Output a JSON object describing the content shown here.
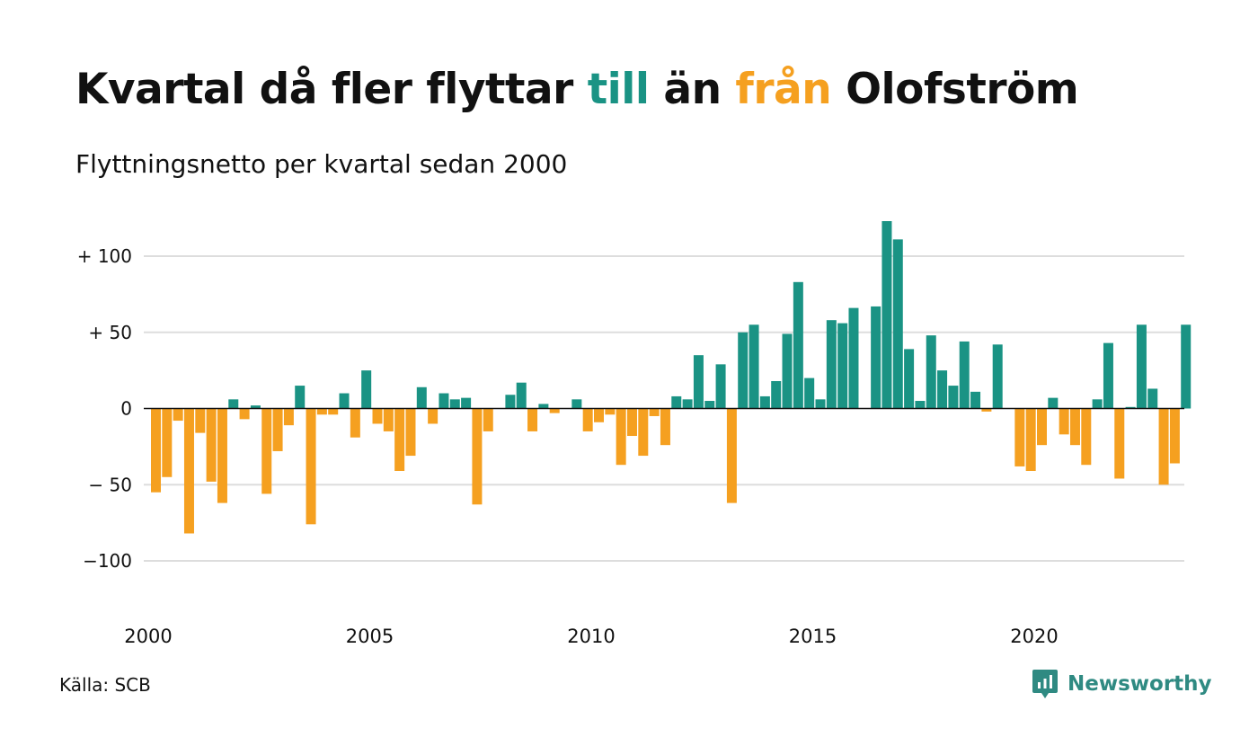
{
  "title": {
    "part1": "Kvartal då fler flyttar ",
    "word_in": "till",
    "part2": " än ",
    "word_out": "från",
    "part3": " Olofström"
  },
  "subtitle": "Flyttningsnetto per kvartal sedan 2000",
  "source": "Källa: SCB",
  "brand": {
    "name": "Newsworthy",
    "icon": "newsworthy-logo-icon"
  },
  "colors": {
    "positive": "#1a9384",
    "negative": "#f5a020",
    "grid": "#dddddd",
    "zero_line": "#111111",
    "brand": "#2f8a82"
  },
  "chart_data": {
    "type": "bar",
    "title": "Kvartal då fler flyttar till än från Olofström",
    "subtitle": "Flyttningsnetto per kvartal sedan 2000",
    "x_start": 2000.0,
    "x_step": 0.25,
    "xlim": [
      2000,
      2023.25
    ],
    "ylim": [
      -135,
      130
    ],
    "y_ticks": [
      100,
      50,
      0,
      -50,
      -100
    ],
    "y_tick_labels": [
      "+ 100",
      "+  50",
      "0",
      "− 50",
      "−100"
    ],
    "x_ticks": [
      2000,
      2005,
      2010,
      2015,
      2020
    ],
    "x_tick_labels": [
      "2000",
      "2005",
      "2010",
      "2015",
      "2020"
    ],
    "grid": true,
    "values": [
      -55,
      -45,
      -8,
      -82,
      -16,
      -48,
      -62,
      6,
      -7,
      2,
      -56,
      -28,
      -11,
      15,
      -76,
      -4,
      -4,
      10,
      -19,
      25,
      -10,
      -15,
      -41,
      -31,
      14,
      -10,
      10,
      6,
      7,
      -63,
      -15,
      0,
      9,
      17,
      -15,
      3,
      -3,
      0,
      6,
      -15,
      -9,
      -4,
      -37,
      -18,
      -31,
      -5,
      -24,
      8,
      6,
      35,
      5,
      29,
      -62,
      50,
      55,
      8,
      18,
      49,
      83,
      20,
      6,
      58,
      56,
      66,
      0,
      67,
      123,
      111,
      39,
      5,
      48,
      25,
      15,
      44,
      11,
      -2,
      42,
      0,
      -38,
      -41,
      -24,
      7,
      -17,
      -24,
      -37,
      6,
      43,
      -46,
      1,
      55,
      13,
      -50,
      -36,
      55
    ]
  }
}
